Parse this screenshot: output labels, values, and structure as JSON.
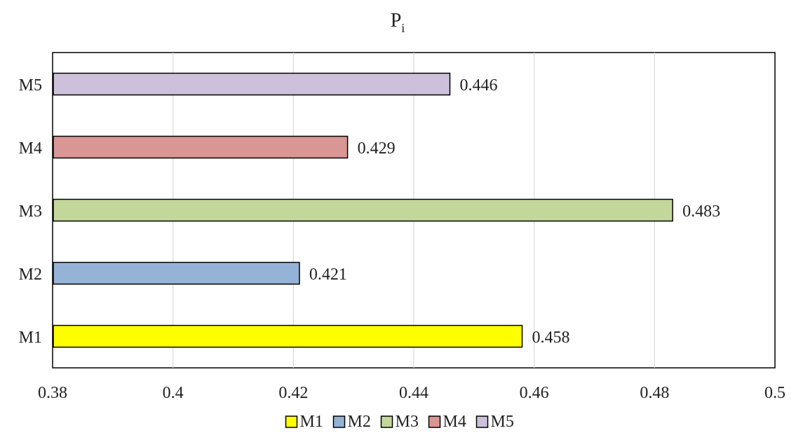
{
  "chart_data": {
    "type": "bar",
    "orientation": "horizontal",
    "title": "P",
    "title_subscript": "i",
    "categories": [
      "M1",
      "M2",
      "M3",
      "M4",
      "M5"
    ],
    "values": [
      0.458,
      0.421,
      0.483,
      0.429,
      0.446
    ],
    "value_labels": [
      "0.458",
      "0.421",
      "0.483",
      "0.429",
      "0.446"
    ],
    "colors": [
      "#FFFF00",
      "#95B3D7",
      "#C4D79B",
      "#DA9694",
      "#CCC0DA"
    ],
    "xlim": [
      0.38,
      0.5
    ],
    "xticks": [
      0.38,
      0.4,
      0.42,
      0.44,
      0.46,
      0.48,
      0.5
    ],
    "xtick_labels": [
      "0.38",
      "0.4",
      "0.42",
      "0.44",
      "0.46",
      "0.48",
      "0.5"
    ],
    "grid": true,
    "legend_position": "bottom",
    "legend": [
      "M1",
      "M2",
      "M3",
      "M4",
      "M5"
    ]
  }
}
